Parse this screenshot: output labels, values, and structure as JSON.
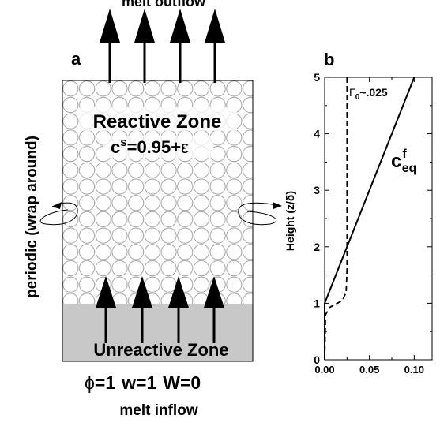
{
  "panel_a": {
    "label": "a",
    "top_label": "melt outflow",
    "bottom_label": "melt inflow",
    "side_label": "periodic (wrap around)",
    "reactive_title": "Reactive Zone",
    "reactive_eq_c": "c",
    "reactive_eq_sup": "s",
    "reactive_eq_rest": "=0.95+",
    "reactive_eq_eps": "ε",
    "unreactive_title": "Unreactive Zone",
    "params": {
      "phi": "ϕ",
      "phi_val": "=1",
      "w": "w=1",
      "W": "W=0"
    },
    "colors": {
      "unreactive": "#c8c8c8",
      "circles": "#9a9a9a"
    }
  },
  "panel_b": {
    "label": "b",
    "ylabel": "Height (z/δ)",
    "annotation_gamma": "Γ",
    "annotation_sub": "0",
    "annotation_val": "~.025",
    "series_label_c": "c",
    "series_label_sup": "f",
    "series_label_sub": "eq"
  },
  "chart_data": {
    "type": "line",
    "xlim": [
      0,
      0.12
    ],
    "ylim": [
      0,
      5
    ],
    "xticks": [
      "0.00",
      "0.05",
      "0.10"
    ],
    "yticks": [
      "0",
      "1",
      "2",
      "3",
      "4",
      "5"
    ],
    "xtick_values": [
      0,
      0.05,
      0.1
    ],
    "ytick_values": [
      0,
      1,
      2,
      3,
      4,
      5
    ],
    "series": [
      {
        "style": "solid",
        "x": [
          0,
          0,
          0.1
        ],
        "y": [
          0,
          1,
          5
        ]
      },
      {
        "style": "dashed",
        "x": [
          0,
          0.001,
          0.006,
          0.014,
          0.02,
          0.024,
          0.025,
          0.025
        ],
        "y": [
          0,
          0.8,
          0.93,
          1.0,
          1.05,
          1.2,
          1.6,
          5
        ]
      }
    ]
  }
}
